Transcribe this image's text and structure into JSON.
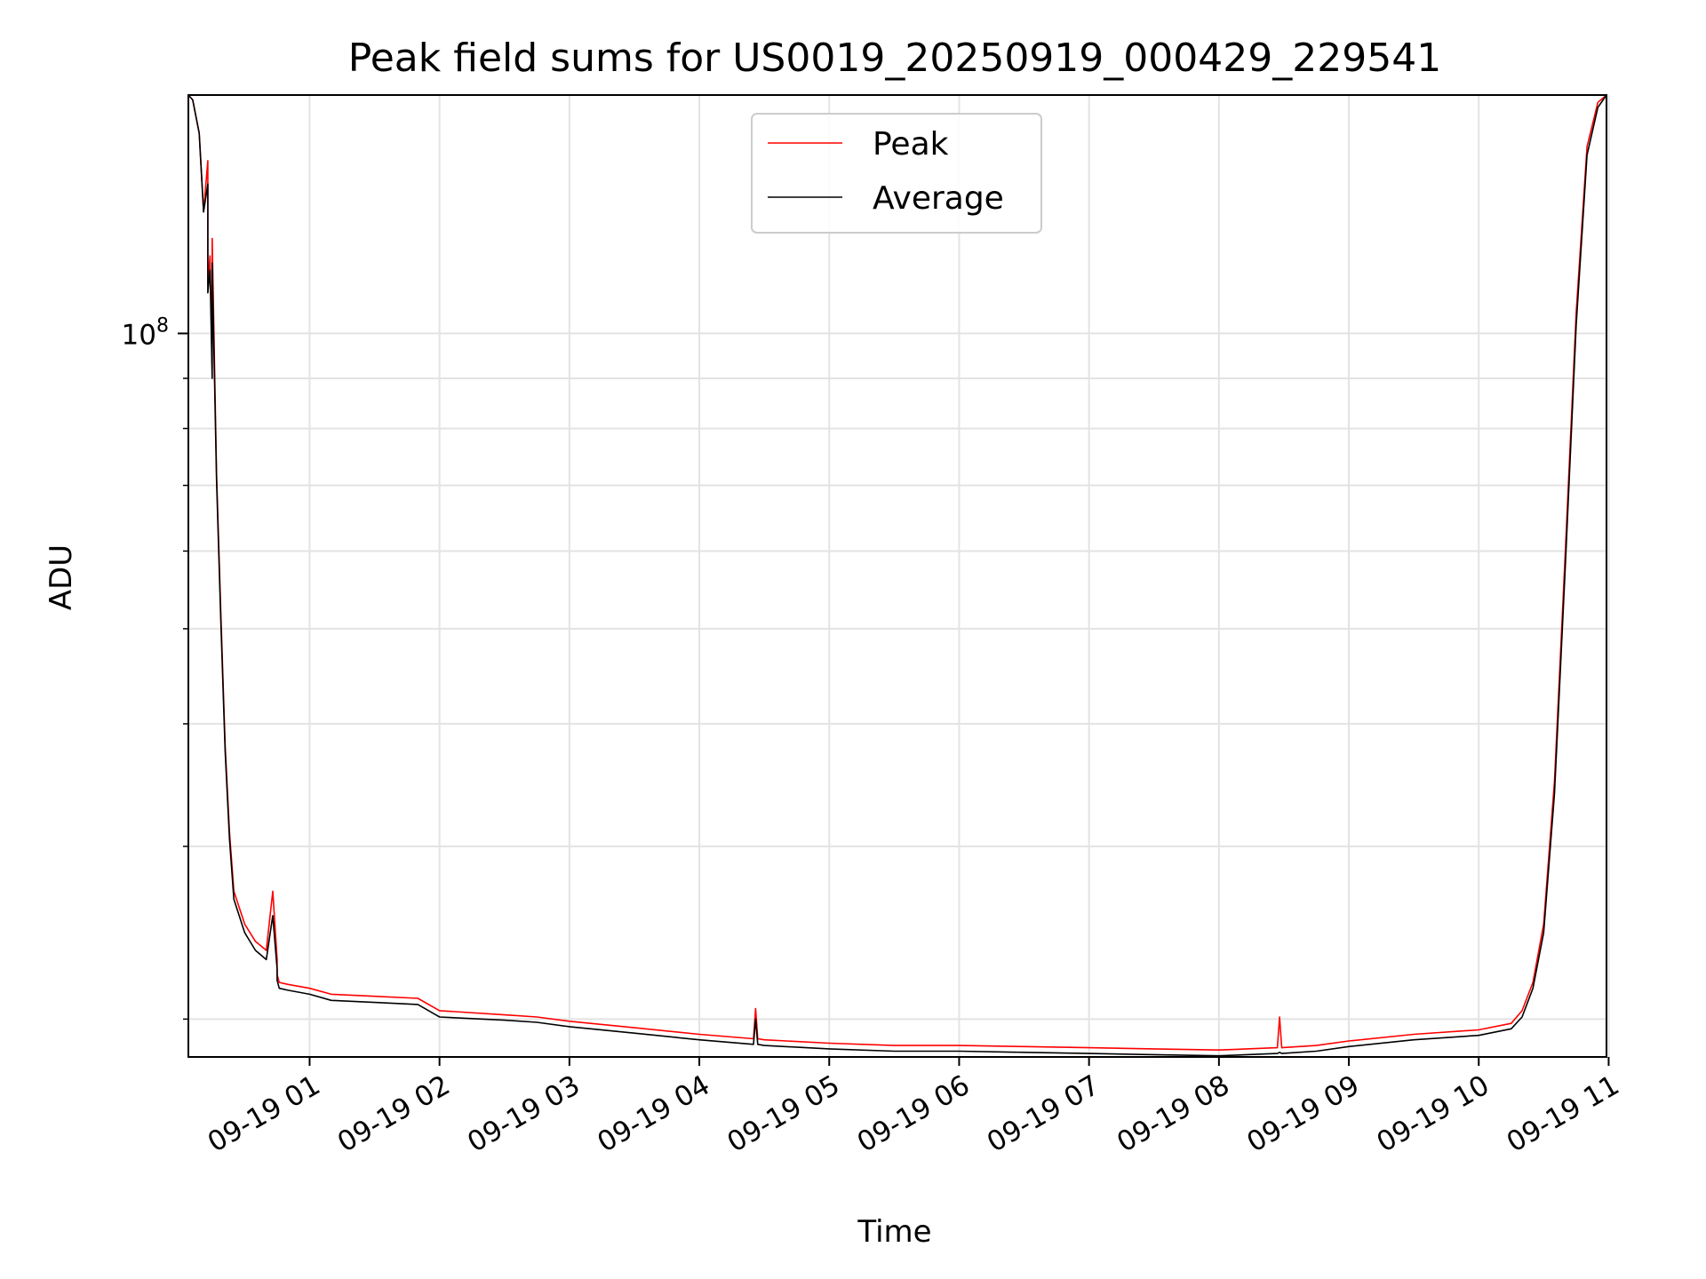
{
  "chart_data": {
    "type": "line",
    "title": "Peak field sums for US0019_20250919_000429_229541",
    "xlabel": "Time",
    "ylabel": "ADU",
    "yscale": "log",
    "grid": true,
    "legend_position": "top-center",
    "xlim": [
      "2025-09-19 00:04",
      "2025-09-19 10:59"
    ],
    "ylim": [
      18300000,
      175000000
    ],
    "x_ticks": [
      "09-19 01",
      "09-19 02",
      "09-19 03",
      "09-19 04",
      "09-19 05",
      "09-19 06",
      "09-19 07",
      "09-19 08",
      "09-19 09",
      "09-19 10",
      "09-19 11"
    ],
    "x_tick_values": [
      "2025-09-19 01:00",
      "2025-09-19 02:00",
      "2025-09-19 03:00",
      "2025-09-19 04:00",
      "2025-09-19 05:00",
      "2025-09-19 06:00",
      "2025-09-19 07:00",
      "2025-09-19 08:00",
      "2025-09-19 09:00",
      "2025-09-19 10:00",
      "2025-09-19 11:00"
    ],
    "y_major_ticks": [
      {
        "value": 100000000,
        "base": "10",
        "exp": "8"
      }
    ],
    "y_minor_ticks": [
      20000000,
      30000000,
      40000000,
      50000000,
      60000000,
      70000000,
      80000000,
      90000000,
      200000000
    ],
    "series": [
      {
        "name": "Peak",
        "color": "#ff0000",
        "x": [
          "2025-09-19 00:04",
          "2025-09-19 00:06",
          "2025-09-19 00:09",
          "2025-09-19 00:11",
          "2025-09-19 00:13",
          "2025-09-19 00:13",
          "2025-09-19 00:14",
          "2025-09-19 00:15",
          "2025-09-19 00:15",
          "2025-09-19 00:17",
          "2025-09-19 00:19",
          "2025-09-19 00:21",
          "2025-09-19 00:23",
          "2025-09-19 00:25",
          "2025-09-19 00:30",
          "2025-09-19 00:35",
          "2025-09-19 00:40",
          "2025-09-19 00:43",
          "2025-09-19 00:45",
          "2025-09-19 00:45",
          "2025-09-19 00:46",
          "2025-09-19 00:50",
          "2025-09-19 01:00",
          "2025-09-19 01:10",
          "2025-09-19 01:30",
          "2025-09-19 01:50",
          "2025-09-19 02:00",
          "2025-09-19 02:30",
          "2025-09-19 02:45",
          "2025-09-19 03:00",
          "2025-09-19 03:30",
          "2025-09-19 04:00",
          "2025-09-19 04:25",
          "2025-09-19 04:26",
          "2025-09-19 04:27",
          "2025-09-19 04:30",
          "2025-09-19 05:00",
          "2025-09-19 05:30",
          "2025-09-19 06:00",
          "2025-09-19 06:30",
          "2025-09-19 07:00",
          "2025-09-19 07:30",
          "2025-09-19 08:00",
          "2025-09-19 08:27",
          "2025-09-19 08:28",
          "2025-09-19 08:29",
          "2025-09-19 08:45",
          "2025-09-19 09:00",
          "2025-09-19 09:30",
          "2025-09-19 10:00",
          "2025-09-19 10:15",
          "2025-09-19 10:20",
          "2025-09-19 10:25",
          "2025-09-19 10:30",
          "2025-09-19 10:35",
          "2025-09-19 10:40",
          "2025-09-19 10:45",
          "2025-09-19 10:50",
          "2025-09-19 10:55",
          "2025-09-19 10:59"
        ],
        "values": [
          175000000,
          173000000,
          160000000,
          133000000,
          150000000,
          112000000,
          120000000,
          92000000,
          125000000,
          72000000,
          52000000,
          38000000,
          31000000,
          27000000,
          25000000,
          24000000,
          23500000,
          27000000,
          23000000,
          22200000,
          21800000,
          21700000,
          21500000,
          21200000,
          21100000,
          21000000,
          20400000,
          20200000,
          20100000,
          19900000,
          19600000,
          19300000,
          19100000,
          20500000,
          19100000,
          19050000,
          18900000,
          18800000,
          18800000,
          18750000,
          18700000,
          18650000,
          18600000,
          18700000,
          20100000,
          18700000,
          18800000,
          19000000,
          19300000,
          19500000,
          19800000,
          20400000,
          21800000,
          25000000,
          35000000,
          60000000,
          105000000,
          155000000,
          172000000,
          175000000
        ]
      },
      {
        "name": "Average",
        "color": "#000000",
        "x": [
          "2025-09-19 00:04",
          "2025-09-19 00:06",
          "2025-09-19 00:09",
          "2025-09-19 00:11",
          "2025-09-19 00:13",
          "2025-09-19 00:13",
          "2025-09-19 00:14",
          "2025-09-19 00:15",
          "2025-09-19 00:15",
          "2025-09-19 00:17",
          "2025-09-19 00:19",
          "2025-09-19 00:21",
          "2025-09-19 00:23",
          "2025-09-19 00:25",
          "2025-09-19 00:30",
          "2025-09-19 00:35",
          "2025-09-19 00:40",
          "2025-09-19 00:43",
          "2025-09-19 00:45",
          "2025-09-19 00:45",
          "2025-09-19 00:46",
          "2025-09-19 00:50",
          "2025-09-19 01:00",
          "2025-09-19 01:10",
          "2025-09-19 01:30",
          "2025-09-19 01:50",
          "2025-09-19 02:00",
          "2025-09-19 02:30",
          "2025-09-19 02:45",
          "2025-09-19 03:00",
          "2025-09-19 03:30",
          "2025-09-19 04:00",
          "2025-09-19 04:25",
          "2025-09-19 04:26",
          "2025-09-19 04:27",
          "2025-09-19 04:30",
          "2025-09-19 05:00",
          "2025-09-19 05:30",
          "2025-09-19 06:00",
          "2025-09-19 06:30",
          "2025-09-19 07:00",
          "2025-09-19 07:30",
          "2025-09-19 08:00",
          "2025-09-19 08:27",
          "2025-09-19 08:28",
          "2025-09-19 08:29",
          "2025-09-19 08:45",
          "2025-09-19 09:00",
          "2025-09-19 09:30",
          "2025-09-19 10:00",
          "2025-09-19 10:15",
          "2025-09-19 10:20",
          "2025-09-19 10:25",
          "2025-09-19 10:30",
          "2025-09-19 10:35",
          "2025-09-19 10:40",
          "2025-09-19 10:45",
          "2025-09-19 10:50",
          "2025-09-19 10:55",
          "2025-09-19 10:59"
        ],
        "values": [
          175000000,
          173000000,
          160000000,
          133000000,
          142000000,
          110000000,
          116000000,
          90000000,
          118000000,
          71000000,
          51000000,
          37500000,
          30500000,
          26500000,
          24500000,
          23500000,
          23000000,
          25500000,
          22500000,
          21900000,
          21500000,
          21400000,
          21200000,
          20900000,
          20800000,
          20700000,
          20100000,
          19950000,
          19850000,
          19650000,
          19350000,
          19050000,
          18850000,
          20000000,
          18850000,
          18800000,
          18650000,
          18550000,
          18550000,
          18500000,
          18450000,
          18400000,
          18350000,
          18450000,
          18500000,
          18450000,
          18550000,
          18750000,
          19050000,
          19250000,
          19550000,
          20100000,
          21500000,
          24500000,
          34000000,
          58000000,
          102000000,
          152000000,
          170000000,
          175000000
        ]
      }
    ]
  }
}
